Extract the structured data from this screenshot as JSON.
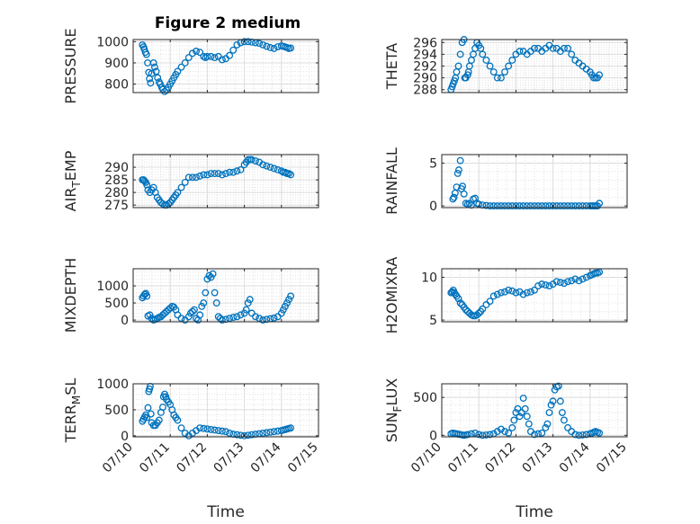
{
  "title": "Figure 2 medium",
  "x_label": "Time",
  "x_tick_labels": [
    "07/10",
    "07/11",
    "07/12",
    "07/13",
    "07/14",
    "07/15"
  ],
  "marker_color": "#0072BD",
  "chart_data": [
    {
      "type": "scatter",
      "ylabel": "PRESSURE",
      "ylabel_sub": "",
      "xlim": [
        0,
        5
      ],
      "ylim": [
        760,
        1010
      ],
      "yticks": [
        800,
        900,
        1000
      ],
      "x": [
        0.25,
        0.28,
        0.3,
        0.33,
        0.36,
        0.39,
        0.42,
        0.44,
        0.47,
        0.5,
        0.55,
        0.58,
        0.62,
        0.66,
        0.7,
        0.73,
        0.77,
        0.8,
        0.85,
        0.9,
        0.95,
        1.0,
        1.05,
        1.1,
        1.15,
        1.2,
        1.3,
        1.4,
        1.5,
        1.6,
        1.7,
        1.8,
        1.9,
        1.95,
        2.0,
        2.1,
        2.2,
        2.3,
        2.4,
        2.5,
        2.6,
        2.7,
        2.8,
        2.9,
        3.0,
        3.1,
        3.2,
        3.3,
        3.4,
        3.5,
        3.6,
        3.7,
        3.8,
        3.9,
        4.0,
        4.05,
        4.1,
        4.15,
        4.2,
        4.25
      ],
      "y": [
        985,
        975,
        965,
        950,
        940,
        900,
        855,
        825,
        805,
        850,
        900,
        880,
        860,
        830,
        810,
        800,
        785,
        775,
        765,
        772,
        785,
        800,
        815,
        830,
        845,
        860,
        880,
        900,
        925,
        945,
        955,
        950,
        930,
        925,
        930,
        930,
        925,
        930,
        915,
        920,
        935,
        960,
        985,
        995,
        1000,
        1000,
        998,
        995,
        992,
        985,
        978,
        972,
        968,
        976,
        980,
        978,
        975,
        972,
        968,
        970
      ]
    },
    {
      "type": "scatter",
      "ylabel": "THETA",
      "ylabel_sub": "",
      "xlim": [
        0,
        5
      ],
      "ylim": [
        287.5,
        296.5
      ],
      "yticks": [
        288,
        290,
        292,
        294,
        296
      ],
      "x": [
        0.25,
        0.28,
        0.31,
        0.34,
        0.37,
        0.4,
        0.45,
        0.5,
        0.55,
        0.6,
        0.62,
        0.65,
        0.7,
        0.72,
        0.75,
        0.8,
        0.85,
        0.9,
        0.95,
        1.0,
        1.05,
        1.1,
        1.2,
        1.3,
        1.4,
        1.5,
        1.6,
        1.7,
        1.8,
        1.9,
        2.0,
        2.1,
        2.2,
        2.3,
        2.4,
        2.5,
        2.6,
        2.7,
        2.8,
        2.9,
        3.0,
        3.1,
        3.2,
        3.3,
        3.4,
        3.5,
        3.6,
        3.7,
        3.8,
        3.9,
        4.0,
        4.05,
        4.1,
        4.15,
        4.2,
        4.25
      ],
      "y": [
        288,
        288.5,
        289,
        289.5,
        290,
        291,
        292,
        294,
        296,
        296.5,
        290,
        290,
        290.5,
        291,
        292,
        293,
        294,
        295,
        296,
        295.5,
        295,
        294,
        293,
        292,
        291,
        290,
        290,
        291,
        292,
        293,
        294,
        294.5,
        294.5,
        294,
        294.5,
        295,
        295,
        294.5,
        295,
        295.5,
        295,
        295,
        294.5,
        295,
        295,
        294,
        293,
        292.5,
        292,
        291.5,
        291,
        290.5,
        290,
        290,
        290,
        290.5
      ]
    },
    {
      "type": "scatter",
      "ylabel": "AIR",
      "ylabel_sub": "T",
      "ylabel_rest": "EMP",
      "xlim": [
        0,
        5
      ],
      "ylim": [
        274,
        295
      ],
      "yticks": [
        275,
        280,
        285,
        290
      ],
      "x": [
        0.25,
        0.28,
        0.31,
        0.34,
        0.37,
        0.4,
        0.45,
        0.5,
        0.55,
        0.6,
        0.65,
        0.7,
        0.75,
        0.8,
        0.85,
        0.9,
        0.95,
        1.0,
        1.05,
        1.1,
        1.15,
        1.2,
        1.3,
        1.4,
        1.5,
        1.6,
        1.7,
        1.8,
        1.9,
        2.0,
        2.1,
        2.2,
        2.3,
        2.4,
        2.5,
        2.6,
        2.7,
        2.8,
        2.9,
        3.0,
        3.05,
        3.1,
        3.15,
        3.2,
        3.3,
        3.4,
        3.5,
        3.6,
        3.7,
        3.8,
        3.9,
        4.0,
        4.05,
        4.1,
        4.15,
        4.2,
        4.25
      ],
      "y": [
        285,
        285,
        284.5,
        284,
        283,
        281,
        280,
        281,
        282,
        280,
        278,
        277,
        276,
        275.5,
        275,
        275,
        275.5,
        276,
        277,
        278,
        279,
        280,
        282,
        284,
        286,
        286,
        286,
        286.5,
        287,
        287,
        287.5,
        287.5,
        287.5,
        287,
        287.5,
        288,
        288,
        288.5,
        289,
        291,
        292,
        293,
        293,
        293,
        292.5,
        292,
        291,
        290.5,
        290,
        289.5,
        289,
        288.5,
        288,
        288,
        287.5,
        287.5,
        287
      ]
    },
    {
      "type": "scatter",
      "ylabel": "RAINFALL",
      "ylabel_sub": "",
      "xlim": [
        0,
        5
      ],
      "ylim": [
        -0.2,
        6
      ],
      "yticks": [
        0,
        5
      ],
      "x": [
        0.3,
        0.33,
        0.36,
        0.4,
        0.43,
        0.46,
        0.5,
        0.53,
        0.56,
        0.6,
        0.65,
        0.7,
        0.75,
        0.8,
        0.85,
        0.9,
        0.95,
        1.0,
        1.1,
        1.2,
        1.3,
        1.4,
        1.5,
        1.6,
        1.7,
        1.8,
        1.9,
        2.0,
        2.1,
        2.2,
        2.3,
        2.4,
        2.5,
        2.6,
        2.7,
        2.8,
        2.9,
        3.0,
        3.1,
        3.2,
        3.3,
        3.4,
        3.5,
        3.6,
        3.7,
        3.8,
        3.9,
        4.0,
        4.05,
        4.1,
        4.15,
        4.2,
        4.25
      ],
      "y": [
        0.8,
        1.0,
        1.5,
        2.2,
        3.8,
        4.2,
        5.3,
        2.0,
        2.3,
        1.4,
        0.3,
        0.2,
        0.3,
        0.1,
        0.8,
        0.9,
        0.3,
        0.2,
        0.1,
        0.05,
        0,
        0,
        0,
        0,
        0,
        0,
        0,
        0,
        0,
        0,
        0,
        0,
        0,
        0,
        0,
        0,
        0,
        0,
        0,
        0,
        0,
        0,
        0,
        0,
        0,
        0,
        0,
        0,
        0,
        0,
        0,
        0,
        0.3
      ]
    },
    {
      "type": "scatter",
      "ylabel": "MIXDEPTH",
      "ylabel_sub": "",
      "xlim": [
        0,
        5
      ],
      "ylim": [
        -50,
        1500
      ],
      "yticks": [
        0,
        500,
        1000
      ],
      "x": [
        0.25,
        0.28,
        0.31,
        0.34,
        0.37,
        0.4,
        0.45,
        0.5,
        0.55,
        0.6,
        0.65,
        0.7,
        0.75,
        0.8,
        0.85,
        0.9,
        0.95,
        1.0,
        1.05,
        1.1,
        1.15,
        1.2,
        1.3,
        1.4,
        1.5,
        1.55,
        1.6,
        1.65,
        1.7,
        1.75,
        1.8,
        1.85,
        1.9,
        1.95,
        2.0,
        2.05,
        2.1,
        2.15,
        2.2,
        2.25,
        2.3,
        2.35,
        2.4,
        2.5,
        2.6,
        2.7,
        2.8,
        2.9,
        3.0,
        3.05,
        3.1,
        3.15,
        3.2,
        3.3,
        3.4,
        3.5,
        3.6,
        3.7,
        3.8,
        3.9,
        4.0,
        4.05,
        4.1,
        4.15,
        4.2,
        4.25
      ],
      "y": [
        650,
        700,
        750,
        780,
        700,
        120,
        150,
        50,
        0,
        20,
        50,
        80,
        100,
        150,
        200,
        250,
        300,
        350,
        400,
        380,
        300,
        150,
        50,
        0,
        100,
        200,
        250,
        300,
        50,
        0,
        150,
        400,
        500,
        800,
        1200,
        1300,
        1250,
        1350,
        800,
        500,
        100,
        50,
        0,
        20,
        50,
        80,
        100,
        150,
        200,
        300,
        500,
        600,
        200,
        100,
        50,
        0,
        20,
        40,
        60,
        100,
        200,
        300,
        400,
        500,
        600,
        700
      ]
    },
    {
      "type": "scatter",
      "ylabel": "H2OMIXRA",
      "ylabel_sub": "",
      "xlim": [
        0,
        5
      ],
      "ylim": [
        4.8,
        11
      ],
      "yticks": [
        5,
        10
      ],
      "x": [
        0.25,
        0.28,
        0.31,
        0.34,
        0.37,
        0.4,
        0.45,
        0.5,
        0.55,
        0.6,
        0.65,
        0.7,
        0.75,
        0.8,
        0.85,
        0.9,
        0.95,
        1.0,
        1.05,
        1.1,
        1.2,
        1.3,
        1.4,
        1.5,
        1.6,
        1.7,
        1.8,
        1.9,
        2.0,
        2.1,
        2.2,
        2.3,
        2.4,
        2.5,
        2.6,
        2.7,
        2.8,
        2.9,
        3.0,
        3.1,
        3.2,
        3.3,
        3.4,
        3.5,
        3.6,
        3.7,
        3.8,
        3.9,
        4.0,
        4.05,
        4.1,
        4.15,
        4.2,
        4.25
      ],
      "y": [
        8.2,
        8.3,
        8.5,
        8.2,
        8.0,
        7.8,
        7.5,
        7.0,
        6.8,
        6.5,
        6.2,
        6.0,
        5.8,
        5.6,
        5.5,
        5.5,
        5.6,
        5.8,
        6.0,
        6.3,
        6.8,
        7.2,
        7.8,
        8.0,
        8.2,
        8.3,
        8.5,
        8.4,
        8.2,
        8.3,
        8.0,
        8.2,
        8.3,
        8.5,
        9.0,
        9.2,
        9.1,
        9.0,
        9.2,
        9.5,
        9.4,
        9.3,
        9.5,
        9.6,
        9.8,
        9.6,
        9.8,
        10.0,
        10.2,
        10.3,
        10.4,
        10.5,
        10.5,
        10.6
      ]
    },
    {
      "type": "scatter",
      "ylabel": "TERR",
      "ylabel_sub": "M",
      "ylabel_rest": "SL",
      "xlim": [
        0,
        5
      ],
      "ylim": [
        -20,
        1000
      ],
      "yticks": [
        0,
        500,
        1000
      ],
      "x": [
        0.25,
        0.28,
        0.31,
        0.34,
        0.37,
        0.4,
        0.42,
        0.44,
        0.46,
        0.48,
        0.5,
        0.55,
        0.6,
        0.65,
        0.7,
        0.75,
        0.8,
        0.82,
        0.85,
        0.88,
        0.9,
        0.95,
        1.0,
        1.05,
        1.1,
        1.15,
        1.2,
        1.3,
        1.4,
        1.5,
        1.6,
        1.7,
        1.8,
        1.9,
        2.0,
        2.1,
        2.2,
        2.3,
        2.4,
        2.5,
        2.6,
        2.7,
        2.8,
        2.9,
        3.0,
        3.1,
        3.2,
        3.3,
        3.4,
        3.5,
        3.6,
        3.7,
        3.8,
        3.9,
        4.0,
        4.05,
        4.1,
        4.15,
        4.2,
        4.25
      ],
      "y": [
        280,
        320,
        360,
        400,
        350,
        540,
        850,
        900,
        950,
        420,
        250,
        200,
        200,
        250,
        300,
        450,
        550,
        750,
        800,
        750,
        700,
        650,
        600,
        500,
        400,
        350,
        300,
        150,
        50,
        0,
        50,
        100,
        150,
        140,
        130,
        120,
        110,
        100,
        90,
        80,
        50,
        30,
        20,
        10,
        0,
        10,
        20,
        30,
        40,
        50,
        60,
        70,
        80,
        90,
        100,
        110,
        120,
        130,
        140,
        150
      ]
    },
    {
      "type": "scatter",
      "ylabel": "SUN",
      "ylabel_sub": "F",
      "ylabel_rest": "LUX",
      "xlim": [
        0,
        5
      ],
      "ylim": [
        -20,
        680
      ],
      "yticks": [
        0,
        500
      ],
      "x": [
        0.25,
        0.3,
        0.35,
        0.4,
        0.45,
        0.5,
        0.55,
        0.6,
        0.65,
        0.7,
        0.8,
        0.9,
        1.0,
        1.1,
        1.2,
        1.3,
        1.4,
        1.5,
        1.6,
        1.7,
        1.8,
        1.9,
        1.95,
        2.0,
        2.05,
        2.1,
        2.15,
        2.2,
        2.25,
        2.3,
        2.35,
        2.4,
        2.5,
        2.6,
        2.7,
        2.8,
        2.85,
        2.9,
        2.95,
        3.0,
        3.05,
        3.1,
        3.15,
        3.2,
        3.25,
        3.3,
        3.4,
        3.5,
        3.6,
        3.7,
        3.8,
        3.9,
        4.0,
        4.05,
        4.1,
        4.15,
        4.2,
        4.25
      ],
      "y": [
        20,
        30,
        25,
        20,
        15,
        10,
        5,
        0,
        5,
        10,
        20,
        30,
        10,
        0,
        5,
        10,
        20,
        50,
        80,
        50,
        30,
        100,
        200,
        300,
        350,
        250,
        300,
        490,
        350,
        250,
        150,
        50,
        10,
        20,
        30,
        100,
        150,
        300,
        400,
        450,
        600,
        640,
        650,
        450,
        300,
        200,
        100,
        50,
        10,
        0,
        5,
        10,
        20,
        30,
        40,
        50,
        40,
        30
      ]
    }
  ]
}
